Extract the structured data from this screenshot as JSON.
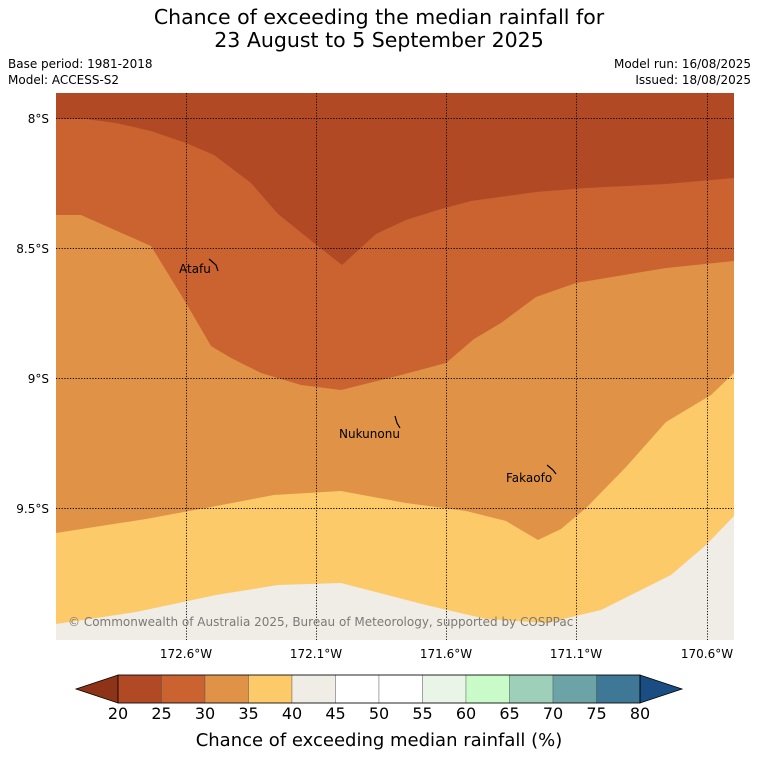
{
  "title_line1": "Chance of exceeding the median rainfall for",
  "title_line2": "23 August to 5 September 2025",
  "meta": {
    "base_period": "Base period: 1981-2018",
    "model": "Model: ACCESS-S2",
    "model_run": "Model run: 16/08/2025",
    "issued": "Issued: 18/08/2025"
  },
  "map": {
    "lat_labels": [
      "8°S",
      "8.5°S",
      "9°S",
      "9.5°S"
    ],
    "lon_labels": [
      "172.6°W",
      "172.1°W",
      "171.6°W",
      "171.1°W",
      "170.6°W"
    ],
    "places": [
      "Atafu",
      "Nukunonu",
      "Fakaofo"
    ],
    "copyright": "© Commonwealth of Australia 2025, Bureau of Meteorology, supported by COSPPac",
    "zone_colors": {
      "20-25": "#b14a24",
      "25-30": "#ca6330",
      "30-35": "#e09346",
      "35-40": "#fdca69",
      "40-45": "#f0ece6"
    }
  },
  "colorbar": {
    "ticks": [
      "20",
      "25",
      "30",
      "35",
      "40",
      "45",
      "50",
      "55",
      "60",
      "65",
      "70",
      "75",
      "80"
    ],
    "colors": [
      "#b14a24",
      "#ca6330",
      "#e09346",
      "#fdca69",
      "#f0ece6",
      "#ffffff",
      "#ffffff",
      "#e9f5e6",
      "#c9fbc8",
      "#9ecfb9",
      "#6ba3a6",
      "#3f7896"
    ],
    "under_color": "#8f3318",
    "over_color": "#1a4d82",
    "label": "Chance of exceeding median rainfall (%)"
  }
}
